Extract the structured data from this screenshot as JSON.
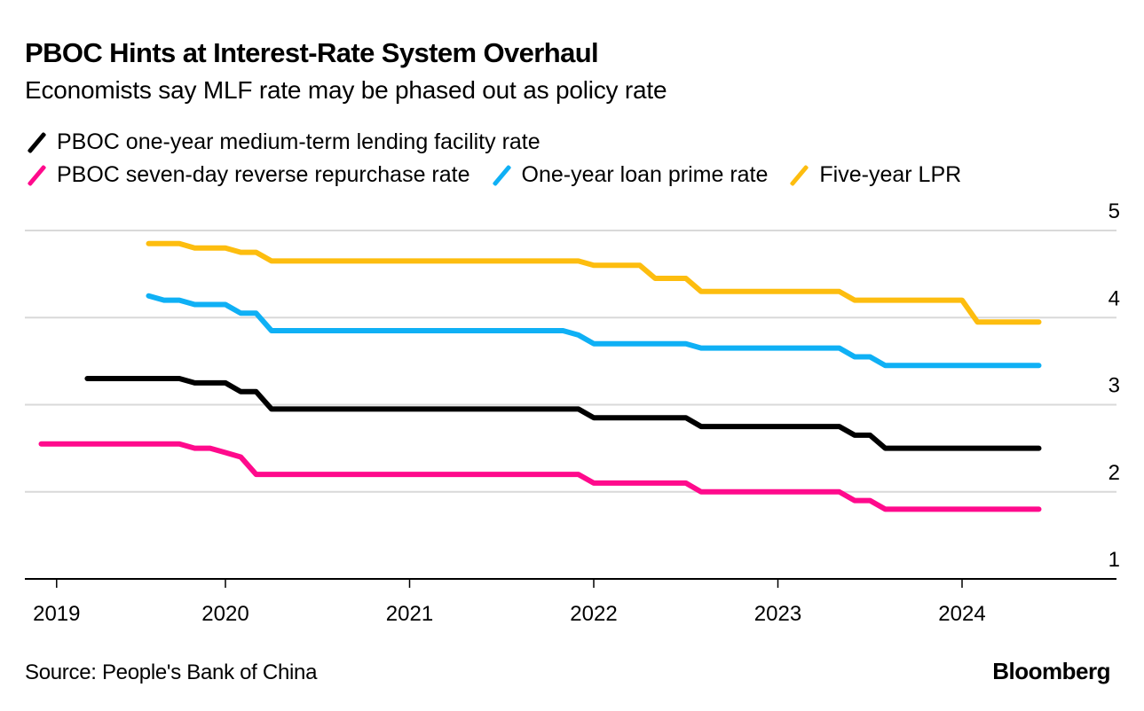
{
  "chart_data": {
    "type": "line",
    "title": "PBOC Hints at Interest-Rate System Overhaul",
    "subtitle": "Economists say MLF rate may be phased out as policy rate",
    "xlabel": "",
    "ylabel": "",
    "ylim": [
      1,
      5
    ],
    "yticks": [
      1,
      2,
      3,
      4,
      5
    ],
    "y_axis_side": "right",
    "grid": true,
    "xticks": [
      {
        "label": "2019",
        "date": "2019-02"
      },
      {
        "label": "2020",
        "date": "2020-01"
      },
      {
        "label": "2021",
        "date": "2021-01"
      },
      {
        "label": "2022",
        "date": "2022-01"
      },
      {
        "label": "2023",
        "date": "2023-01"
      },
      {
        "label": "2024",
        "date": "2024-01"
      }
    ],
    "legend_placement": "top-left",
    "series": [
      {
        "name": "PBOC one-year medium-term lending facility rate",
        "color": "#000000",
        "points": [
          [
            "2019-04",
            3.3
          ],
          [
            "2019-10",
            3.3
          ],
          [
            "2019-11",
            3.25
          ],
          [
            "2020-01",
            3.25
          ],
          [
            "2020-02",
            3.15
          ],
          [
            "2020-03",
            3.15
          ],
          [
            "2020-04",
            2.95
          ],
          [
            "2021-12",
            2.95
          ],
          [
            "2022-01",
            2.85
          ],
          [
            "2022-07",
            2.85
          ],
          [
            "2022-08",
            2.75
          ],
          [
            "2023-05",
            2.75
          ],
          [
            "2023-06",
            2.65
          ],
          [
            "2023-07",
            2.65
          ],
          [
            "2023-08",
            2.5
          ],
          [
            "2024-06",
            2.5
          ]
        ]
      },
      {
        "name": "PBOC seven-day reverse repurchase rate",
        "color": "#ff0a8c",
        "points": [
          [
            "2019-01",
            2.55
          ],
          [
            "2019-10",
            2.55
          ],
          [
            "2019-11",
            2.5
          ],
          [
            "2019-12",
            2.5
          ],
          [
            "2020-01",
            2.45
          ],
          [
            "2020-02",
            2.4
          ],
          [
            "2020-03",
            2.2
          ],
          [
            "2021-12",
            2.2
          ],
          [
            "2022-01",
            2.1
          ],
          [
            "2022-07",
            2.1
          ],
          [
            "2022-08",
            2.0
          ],
          [
            "2023-05",
            2.0
          ],
          [
            "2023-06",
            1.9
          ],
          [
            "2023-07",
            1.9
          ],
          [
            "2023-08",
            1.8
          ],
          [
            "2024-06",
            1.8
          ]
        ]
      },
      {
        "name": "One-year loan prime rate",
        "color": "#0fb0f5",
        "points": [
          [
            "2019-08",
            4.25
          ],
          [
            "2019-09",
            4.2
          ],
          [
            "2019-10",
            4.2
          ],
          [
            "2019-11",
            4.15
          ],
          [
            "2020-01",
            4.15
          ],
          [
            "2020-02",
            4.05
          ],
          [
            "2020-03",
            4.05
          ],
          [
            "2020-04",
            3.85
          ],
          [
            "2021-11",
            3.85
          ],
          [
            "2021-12",
            3.8
          ],
          [
            "2022-01",
            3.7
          ],
          [
            "2022-07",
            3.7
          ],
          [
            "2022-08",
            3.65
          ],
          [
            "2023-05",
            3.65
          ],
          [
            "2023-06",
            3.55
          ],
          [
            "2023-07",
            3.55
          ],
          [
            "2023-08",
            3.45
          ],
          [
            "2024-06",
            3.45
          ]
        ]
      },
      {
        "name": "Five-year LPR",
        "color": "#fdbd0f",
        "points": [
          [
            "2019-08",
            4.85
          ],
          [
            "2019-10",
            4.85
          ],
          [
            "2019-11",
            4.8
          ],
          [
            "2020-01",
            4.8
          ],
          [
            "2020-02",
            4.75
          ],
          [
            "2020-03",
            4.75
          ],
          [
            "2020-04",
            4.65
          ],
          [
            "2021-12",
            4.65
          ],
          [
            "2022-01",
            4.6
          ],
          [
            "2022-04",
            4.6
          ],
          [
            "2022-05",
            4.45
          ],
          [
            "2022-07",
            4.45
          ],
          [
            "2022-08",
            4.3
          ],
          [
            "2023-05",
            4.3
          ],
          [
            "2023-06",
            4.2
          ],
          [
            "2024-01",
            4.2
          ],
          [
            "2024-02",
            3.95
          ],
          [
            "2024-06",
            3.95
          ]
        ]
      }
    ]
  },
  "legend": [
    {
      "label": "PBOC one-year medium-term lending facility rate",
      "color": "#000000"
    },
    {
      "label": "PBOC seven-day reverse repurchase rate",
      "color": "#ff0a8c"
    },
    {
      "label": "One-year loan prime rate",
      "color": "#0fb0f5"
    },
    {
      "label": "Five-year LPR",
      "color": "#fdbd0f"
    }
  ],
  "footer": {
    "source": "Source: People's Bank of China",
    "brand": "Bloomberg"
  }
}
